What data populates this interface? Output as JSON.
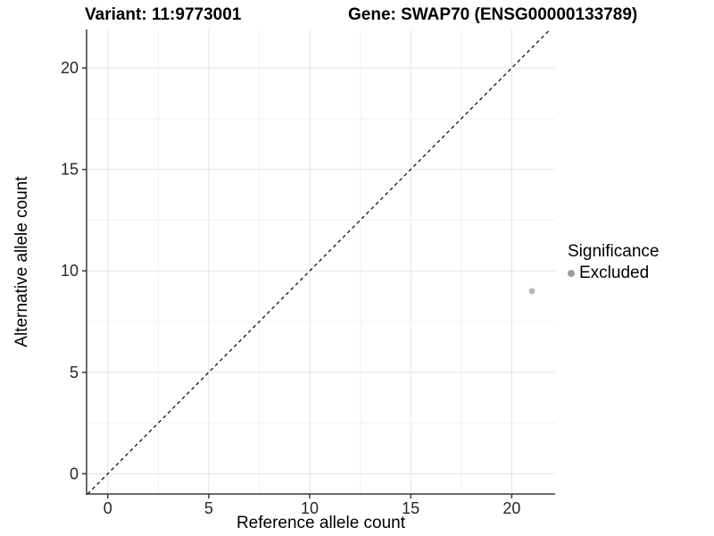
{
  "style": {
    "background": "#ffffff",
    "major_grid": "#e4e4e4",
    "minor_grid": "#f1f1f1",
    "axis_line": "#3c3c3c",
    "tick_mark": "#3c3c3c",
    "tick_label_color": "#262626",
    "title_color": "#000000",
    "reference_line_color": "#000000"
  },
  "chart_data": {
    "type": "scatter",
    "title_left": "Variant: 11:9773001",
    "title_right": "Gene: SWAP70 (ENSG00000133789)",
    "xlabel": "Reference allele count",
    "ylabel": "Alternative allele count",
    "x_ticks": [
      0,
      5,
      10,
      15,
      20
    ],
    "y_ticks": [
      0,
      5,
      10,
      15,
      20
    ],
    "x_minor_ticks": [
      2.5,
      7.5,
      12.5,
      17.5
    ],
    "y_minor_ticks": [
      2.5,
      7.5,
      12.5,
      17.5
    ],
    "xlim": [
      -1.05,
      22.15
    ],
    "ylim": [
      -1.0,
      21.9
    ],
    "grid": true,
    "series": [
      {
        "name": "Excluded",
        "color": "#b9b9b9",
        "points": [
          {
            "x": 21,
            "y": 9
          }
        ]
      }
    ],
    "reference_line": {
      "type": "identity",
      "slope": 1,
      "intercept": 0,
      "style": "dashed"
    },
    "legend": {
      "title": "Significance",
      "position": "right",
      "entries": [
        {
          "label": "Excluded",
          "color": "#9e9e9e"
        }
      ]
    }
  }
}
